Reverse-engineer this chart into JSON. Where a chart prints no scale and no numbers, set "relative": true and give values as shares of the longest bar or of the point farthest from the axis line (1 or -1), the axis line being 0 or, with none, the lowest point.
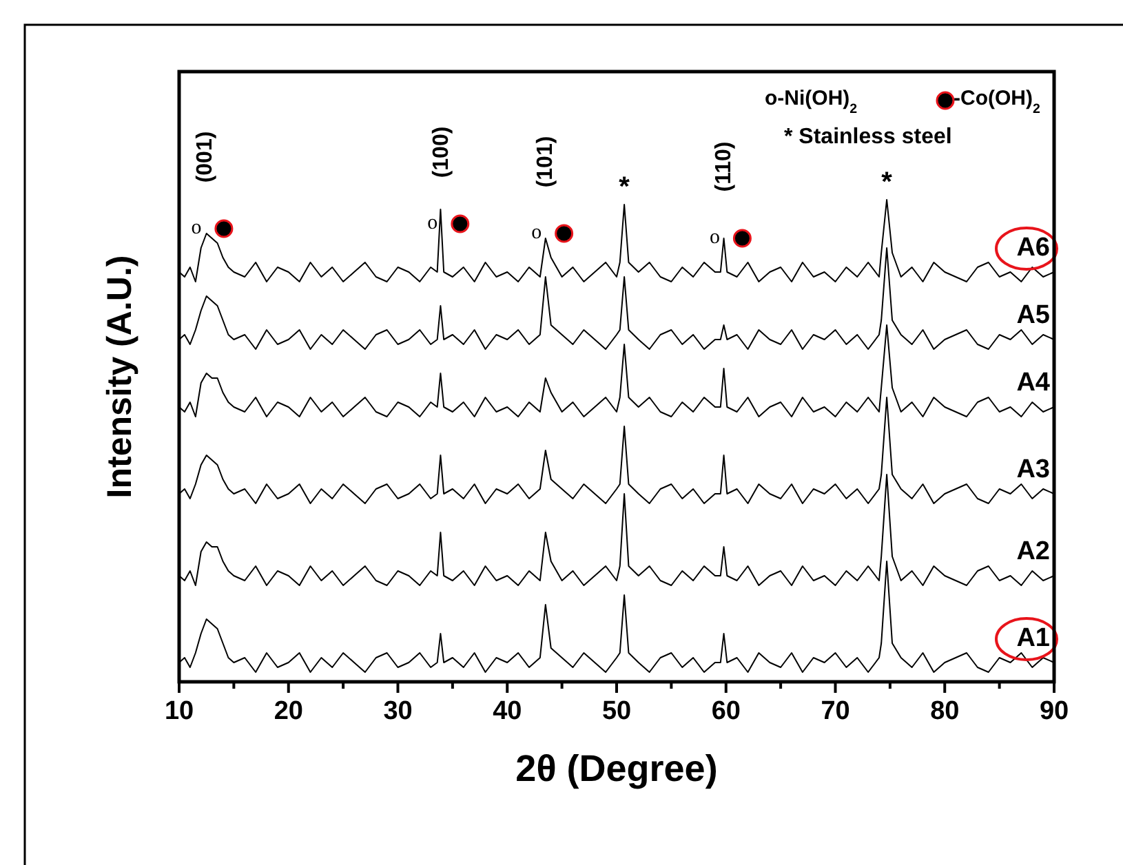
{
  "chart_data": {
    "type": "line",
    "xlabel": "2θ (Degree)",
    "ylabel": "Intensity (A.U.)",
    "relative": true,
    "legend": false,
    "grid": false,
    "marker": "none",
    "line_style": "solid",
    "xlim": [
      10,
      90
    ],
    "xticks": [
      10,
      {
        "value": 15,
        "label": null
      },
      20,
      {
        "value": 25,
        "label": null
      },
      30,
      {
        "value": 35,
        "label": null
      },
      40,
      {
        "value": 45,
        "label": null
      },
      50,
      {
        "value": 55,
        "label": null
      },
      60,
      {
        "value": 65,
        "label": null
      },
      70,
      {
        "value": 75,
        "label": null
      },
      80,
      {
        "value": 85,
        "label": null
      },
      90
    ],
    "x": [
      10,
      10.5,
      11,
      11.5,
      12,
      12.5,
      13,
      13.5,
      14,
      14.5,
      15,
      16,
      17,
      18,
      19,
      20,
      21,
      22,
      23,
      24,
      25,
      26,
      27,
      28,
      29,
      30,
      31,
      32,
      33,
      33.6,
      33.9,
      34.2,
      35,
      36,
      37,
      38,
      39,
      40,
      41,
      42,
      43,
      43.5,
      44,
      45,
      46,
      47,
      48,
      49,
      50,
      50.3,
      50.7,
      51.1,
      52,
      53,
      54,
      55,
      56,
      57,
      58,
      59,
      59.5,
      59.8,
      60.1,
      61,
      62,
      63,
      64,
      65,
      66,
      67,
      68,
      69,
      70,
      71,
      72,
      73,
      74,
      74.2,
      74.7,
      75.2,
      76,
      77,
      78,
      79,
      80,
      81,
      82,
      83,
      84,
      85,
      86,
      87,
      88,
      89,
      90
    ],
    "series": [
      {
        "name": "A1",
        "color": "#000000",
        "values": [
          0.04,
          0.05,
          0.03,
          0.06,
          0.1,
          0.13,
          0.12,
          0.11,
          0.08,
          0.05,
          0.04,
          0.05,
          0.02,
          0.06,
          0.03,
          0.04,
          0.06,
          0.02,
          0.05,
          0.03,
          0.06,
          0.04,
          0.02,
          0.05,
          0.06,
          0.03,
          0.04,
          0.06,
          0.03,
          0.04,
          0.1,
          0.04,
          0.05,
          0.03,
          0.06,
          0.02,
          0.05,
          0.04,
          0.06,
          0.03,
          0.05,
          0.16,
          0.07,
          0.05,
          0.03,
          0.06,
          0.04,
          0.02,
          0.05,
          0.06,
          0.18,
          0.06,
          0.04,
          0.02,
          0.05,
          0.06,
          0.03,
          0.05,
          0.02,
          0.04,
          0.04,
          0.1,
          0.04,
          0.05,
          0.02,
          0.06,
          0.04,
          0.03,
          0.06,
          0.02,
          0.05,
          0.04,
          0.06,
          0.03,
          0.05,
          0.02,
          0.05,
          0.08,
          0.25,
          0.08,
          0.05,
          0.03,
          0.06,
          0.02,
          0.04,
          0.05,
          0.06,
          0.03,
          0.02,
          0.05,
          0.04,
          0.06,
          0.03,
          0.05,
          0.04
        ]
      },
      {
        "name": "A2",
        "color": "#000000",
        "values": [
          0.22,
          0.21,
          0.23,
          0.2,
          0.27,
          0.29,
          0.28,
          0.28,
          0.25,
          0.23,
          0.22,
          0.21,
          0.24,
          0.2,
          0.23,
          0.22,
          0.2,
          0.24,
          0.21,
          0.23,
          0.2,
          0.22,
          0.24,
          0.21,
          0.2,
          0.23,
          0.22,
          0.2,
          0.23,
          0.22,
          0.31,
          0.22,
          0.21,
          0.23,
          0.2,
          0.24,
          0.21,
          0.22,
          0.2,
          0.23,
          0.21,
          0.31,
          0.25,
          0.21,
          0.23,
          0.2,
          0.22,
          0.24,
          0.21,
          0.24,
          0.39,
          0.24,
          0.22,
          0.24,
          0.21,
          0.2,
          0.23,
          0.21,
          0.24,
          0.22,
          0.22,
          0.28,
          0.22,
          0.21,
          0.24,
          0.2,
          0.22,
          0.23,
          0.2,
          0.24,
          0.21,
          0.22,
          0.2,
          0.23,
          0.21,
          0.24,
          0.21,
          0.26,
          0.43,
          0.26,
          0.21,
          0.23,
          0.2,
          0.24,
          0.22,
          0.21,
          0.2,
          0.23,
          0.24,
          0.21,
          0.22,
          0.2,
          0.23,
          0.21,
          0.22
        ]
      },
      {
        "name": "A3",
        "color": "#000000",
        "values": [
          0.39,
          0.4,
          0.38,
          0.41,
          0.45,
          0.47,
          0.46,
          0.45,
          0.42,
          0.4,
          0.39,
          0.4,
          0.37,
          0.41,
          0.38,
          0.39,
          0.41,
          0.37,
          0.4,
          0.38,
          0.41,
          0.39,
          0.37,
          0.4,
          0.41,
          0.38,
          0.39,
          0.41,
          0.38,
          0.39,
          0.47,
          0.39,
          0.4,
          0.38,
          0.41,
          0.37,
          0.4,
          0.39,
          0.41,
          0.38,
          0.4,
          0.48,
          0.42,
          0.4,
          0.38,
          0.41,
          0.39,
          0.37,
          0.4,
          0.41,
          0.53,
          0.41,
          0.39,
          0.37,
          0.4,
          0.41,
          0.38,
          0.4,
          0.37,
          0.39,
          0.39,
          0.47,
          0.39,
          0.4,
          0.37,
          0.41,
          0.39,
          0.38,
          0.41,
          0.37,
          0.4,
          0.39,
          0.41,
          0.38,
          0.4,
          0.37,
          0.4,
          0.43,
          0.59,
          0.43,
          0.4,
          0.38,
          0.41,
          0.37,
          0.39,
          0.4,
          0.41,
          0.38,
          0.37,
          0.4,
          0.39,
          0.41,
          0.38,
          0.4,
          0.39
        ]
      },
      {
        "name": "A4",
        "color": "#000000",
        "values": [
          0.57,
          0.56,
          0.58,
          0.55,
          0.62,
          0.64,
          0.63,
          0.63,
          0.6,
          0.58,
          0.57,
          0.56,
          0.59,
          0.55,
          0.58,
          0.57,
          0.55,
          0.59,
          0.56,
          0.58,
          0.55,
          0.57,
          0.59,
          0.56,
          0.55,
          0.58,
          0.57,
          0.55,
          0.58,
          0.57,
          0.64,
          0.57,
          0.56,
          0.58,
          0.55,
          0.59,
          0.56,
          0.57,
          0.55,
          0.58,
          0.56,
          0.63,
          0.6,
          0.56,
          0.58,
          0.55,
          0.57,
          0.59,
          0.56,
          0.59,
          0.7,
          0.59,
          0.57,
          0.59,
          0.56,
          0.55,
          0.58,
          0.56,
          0.59,
          0.57,
          0.57,
          0.65,
          0.57,
          0.56,
          0.59,
          0.55,
          0.57,
          0.58,
          0.55,
          0.59,
          0.56,
          0.57,
          0.55,
          0.58,
          0.56,
          0.59,
          0.56,
          0.61,
          0.74,
          0.61,
          0.56,
          0.58,
          0.55,
          0.59,
          0.57,
          0.56,
          0.55,
          0.58,
          0.59,
          0.56,
          0.57,
          0.55,
          0.58,
          0.56,
          0.57
        ]
      },
      {
        "name": "A5",
        "color": "#000000",
        "values": [
          0.71,
          0.72,
          0.7,
          0.73,
          0.77,
          0.8,
          0.79,
          0.78,
          0.75,
          0.72,
          0.71,
          0.72,
          0.69,
          0.73,
          0.7,
          0.71,
          0.73,
          0.69,
          0.72,
          0.7,
          0.73,
          0.71,
          0.69,
          0.72,
          0.73,
          0.7,
          0.71,
          0.73,
          0.7,
          0.71,
          0.78,
          0.71,
          0.72,
          0.7,
          0.73,
          0.69,
          0.72,
          0.71,
          0.73,
          0.7,
          0.72,
          0.84,
          0.74,
          0.72,
          0.7,
          0.73,
          0.71,
          0.69,
          0.72,
          0.73,
          0.84,
          0.73,
          0.71,
          0.69,
          0.72,
          0.73,
          0.7,
          0.72,
          0.69,
          0.71,
          0.71,
          0.74,
          0.71,
          0.72,
          0.69,
          0.73,
          0.71,
          0.7,
          0.73,
          0.69,
          0.72,
          0.71,
          0.73,
          0.7,
          0.72,
          0.69,
          0.72,
          0.75,
          0.9,
          0.75,
          0.72,
          0.7,
          0.73,
          0.69,
          0.71,
          0.72,
          0.73,
          0.7,
          0.69,
          0.72,
          0.71,
          0.73,
          0.7,
          0.72,
          0.71
        ]
      },
      {
        "name": "A6",
        "color": "#000000",
        "values": [
          0.85,
          0.84,
          0.86,
          0.83,
          0.9,
          0.93,
          0.92,
          0.91,
          0.88,
          0.86,
          0.85,
          0.84,
          0.87,
          0.83,
          0.86,
          0.85,
          0.83,
          0.87,
          0.84,
          0.86,
          0.83,
          0.85,
          0.87,
          0.84,
          0.83,
          0.86,
          0.85,
          0.83,
          0.86,
          0.85,
          0.98,
          0.85,
          0.84,
          0.86,
          0.83,
          0.87,
          0.84,
          0.85,
          0.83,
          0.86,
          0.84,
          0.92,
          0.88,
          0.84,
          0.86,
          0.83,
          0.85,
          0.87,
          0.84,
          0.87,
          0.99,
          0.87,
          0.85,
          0.87,
          0.84,
          0.83,
          0.86,
          0.84,
          0.87,
          0.85,
          0.85,
          0.92,
          0.85,
          0.84,
          0.87,
          0.83,
          0.85,
          0.86,
          0.83,
          0.87,
          0.84,
          0.85,
          0.83,
          0.86,
          0.84,
          0.87,
          0.84,
          0.89,
          1.0,
          0.89,
          0.84,
          0.86,
          0.83,
          0.87,
          0.85,
          0.84,
          0.83,
          0.86,
          0.87,
          0.84,
          0.85,
          0.83,
          0.86,
          0.84,
          0.85
        ]
      }
    ],
    "annotations": [
      "o-Ni(OH)$_{2}$",
      "-Co(OH)$_{2}$",
      "* Stainless steel",
      {
        "text": "o",
        "x": 12.2,
        "y": 0.94
      },
      "(001)",
      {
        "text": "o",
        "x": 33.8,
        "y": 0.95
      },
      "(100)",
      {
        "text": "o",
        "x": 43.3,
        "y": 0.93
      },
      "(101)",
      {
        "text": "*",
        "x": 50.7,
        "y": 0.99
      },
      {
        "text": "o",
        "x": 59.6,
        "y": 0.92
      },
      "(110)",
      {
        "text": "*",
        "x": 74.7,
        "y": 1.0
      }
    ]
  }
}
